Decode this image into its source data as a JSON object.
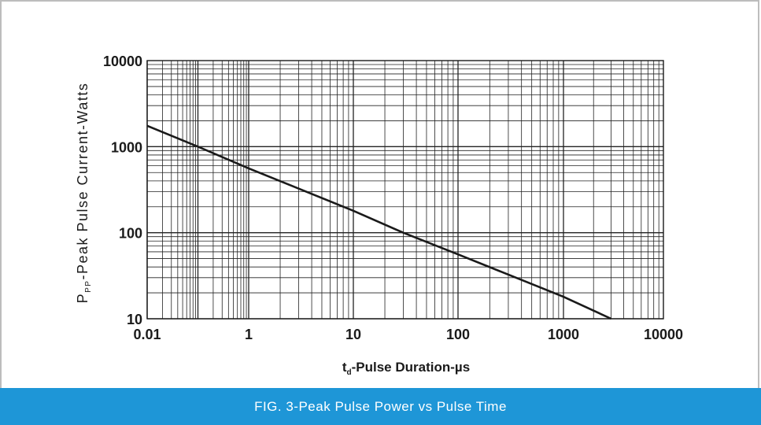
{
  "chart_data": {
    "type": "line",
    "title": "",
    "xlabel_main": "t",
    "xlabel_sub": "d",
    "xlabel_rest": "-Pulse Duration-µs",
    "ylabel_main": "P",
    "ylabel_sub": "PP",
    "ylabel_rest": "-Peak Pulse Current-Watts",
    "x_scale": "log",
    "y_scale": "log",
    "xlim": [
      0.01,
      10000
    ],
    "ylim": [
      10,
      10000
    ],
    "x_ticks": [
      "0.01",
      "1",
      "10",
      "100",
      "1000",
      "10000"
    ],
    "y_ticks": [
      "10000",
      "1000",
      "100",
      "10"
    ],
    "grid": true,
    "series": [
      {
        "x": [
          0.01,
          0.1,
          1,
          10,
          30,
          100,
          1000,
          3000
        ],
        "y": [
          1750,
          1000,
          560,
          180,
          100,
          56,
          18,
          10
        ]
      }
    ]
  },
  "caption": "FIG. 3-Peak Pulse Power vs Pulse Time",
  "colors": {
    "caption_bg": "#1e96d7",
    "line": "#1a1a1a",
    "grid": "#222222"
  }
}
